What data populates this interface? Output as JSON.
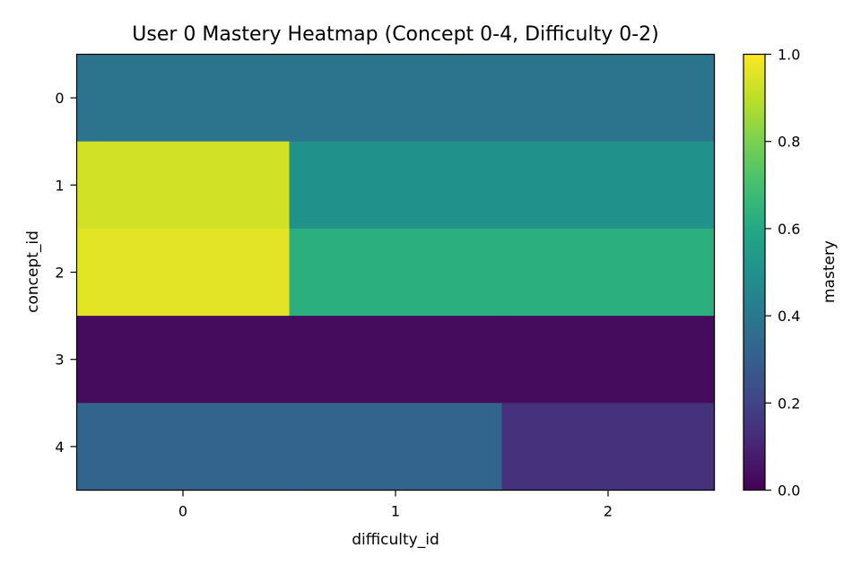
{
  "chart_data": {
    "type": "heatmap",
    "title": "User 0 Mastery Heatmap (Concept 0-4, Difficulty 0-2)",
    "xlabel": "difficulty_id",
    "ylabel": "concept_id",
    "x_categories": [
      "0",
      "1",
      "2"
    ],
    "y_categories": [
      "0",
      "1",
      "2",
      "3",
      "4"
    ],
    "values": [
      [
        0.38,
        0.38,
        0.38
      ],
      [
        0.93,
        0.5,
        0.5
      ],
      [
        0.96,
        0.63,
        0.63
      ],
      [
        0.03,
        0.03,
        0.03
      ],
      [
        0.32,
        0.32,
        0.14
      ]
    ],
    "colormap": "viridis",
    "vmin": 0.0,
    "vmax": 1.0,
    "colorbar": {
      "label": "mastery",
      "ticks": [
        "0.0",
        "0.2",
        "0.4",
        "0.6",
        "0.8",
        "1.0"
      ]
    }
  }
}
